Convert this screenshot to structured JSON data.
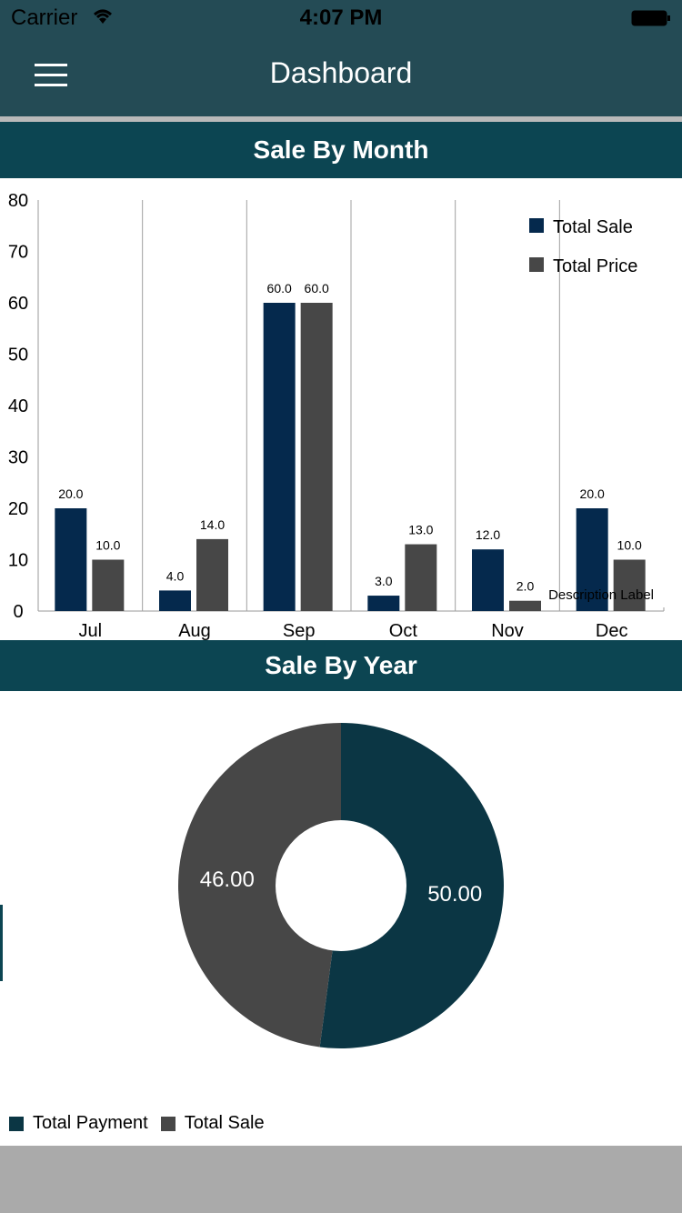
{
  "status_bar": {
    "carrier": "Carrier",
    "time": "4:07 PM"
  },
  "nav": {
    "title": "Dashboard"
  },
  "sections": {
    "sale_by_month": "Sale By Month",
    "sale_by_year": "Sale By Year"
  },
  "colors": {
    "navy": "#05294d",
    "gray": "#474747",
    "teal": "#0b3644",
    "header": "#0c4552",
    "navbar": "#244b55"
  },
  "chart_data": [
    {
      "type": "bar",
      "title": "Sale By Month",
      "categories": [
        "Jul",
        "Aug",
        "Sep",
        "Oct",
        "Nov",
        "Dec"
      ],
      "series": [
        {
          "name": "Total Sale",
          "color": "#05294d",
          "values": [
            20.0,
            4.0,
            60.0,
            3.0,
            12.0,
            20.0
          ],
          "labels": [
            "20.0",
            "4.0",
            "60.0",
            "3.0",
            "12.0",
            "20.0"
          ]
        },
        {
          "name": "Total Price",
          "color": "#474747",
          "values": [
            10.0,
            14.0,
            60.0,
            13.0,
            2.0,
            10.0
          ],
          "labels": [
            "10.0",
            "14.0",
            "60.0",
            "13.0",
            "2.0",
            "10.0"
          ]
        }
      ],
      "ylim": [
        0,
        80
      ],
      "yticks": [
        "0",
        "10",
        "20",
        "30",
        "40",
        "50",
        "60",
        "70",
        "80"
      ],
      "description": "Description Label",
      "legend_position": "top-right",
      "grid": "vertical"
    },
    {
      "type": "pie",
      "title": "Sale By Year",
      "slices": [
        {
          "name": "Total Payment",
          "value": 50,
          "label": "50.00",
          "color": "#0b3644"
        },
        {
          "name": "Total Sale",
          "value": 46,
          "label": "46.00",
          "color": "#474747"
        }
      ],
      "donut": true,
      "legend_position": "bottom-left"
    }
  ]
}
